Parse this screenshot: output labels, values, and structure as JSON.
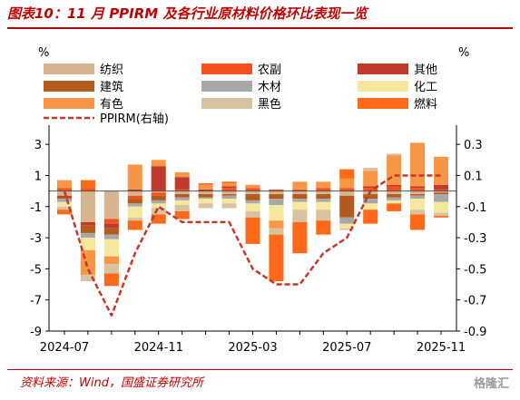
{
  "figure_title": "图表10：11 月 PPIRM 及各行业原材料价格环比表现一览",
  "source_note": "资料来源：Wind，国盛证券研究所",
  "watermark": "格隆汇",
  "colors": {
    "title_red": "#c00000",
    "纺织": "#d7b48f",
    "农副": "#f4511e",
    "其他": "#c0392b",
    "建筑": "#b35a1f",
    "木材": "#a8a8a8",
    "化工": "#f5e79e",
    "有色": "#f79646",
    "黑色": "#d9c2a0",
    "燃料": "#ff6a1a",
    "PPIRM": "#c0392b"
  },
  "chart_data": {
    "type": "bar",
    "stacked": true,
    "xlabel": "",
    "ylabel_left": "%",
    "ylabel_right": "%",
    "ylim": [
      -9,
      4
    ],
    "y2lim": [
      -0.9,
      0.4
    ],
    "yticks": [
      3,
      1,
      -1,
      -3,
      -5,
      -7,
      -9
    ],
    "y2ticks": [
      0.3,
      0.1,
      -0.1,
      -0.3,
      -0.5,
      -0.7,
      -0.9
    ],
    "grid": false,
    "legend": "top",
    "categories": [
      "2024-07",
      "2024-08",
      "2024-09",
      "2024-10",
      "2024-11",
      "2024-12",
      "2025-01",
      "2025-02",
      "2025-03",
      "2025-04",
      "2025-05",
      "2025-06",
      "2025-07",
      "2025-08",
      "2025-09",
      "2025-10",
      "2025-11"
    ],
    "xtick_labels": [
      "2024-07",
      "2024-11",
      "2025-03",
      "2025-07",
      "2025-11"
    ],
    "xtick_indices": [
      0,
      4,
      8,
      12,
      16
    ],
    "series": [
      {
        "name": "纺织",
        "axis": "left",
        "values": [
          -0.3,
          -2.0,
          -1.8,
          -0.3,
          -0.1,
          -0.2,
          -0.2,
          -0.2,
          -0.2,
          -0.2,
          -0.2,
          -0.2,
          -0.3,
          -0.2,
          -0.2,
          -0.2,
          -0.1
        ]
      },
      {
        "name": "农副",
        "axis": "left",
        "values": [
          0.2,
          0.2,
          -0.3,
          -0.2,
          -0.2,
          0.1,
          0.0,
          0.2,
          0.2,
          0.1,
          0.1,
          0.2,
          0.2,
          0.2,
          0.3,
          0.2,
          0.1
        ]
      },
      {
        "name": "其他",
        "axis": "left",
        "values": [
          -0.1,
          -0.2,
          -0.3,
          0.1,
          1.6,
          0.8,
          0.1,
          0.1,
          0.0,
          0.0,
          0.0,
          0.0,
          0.0,
          0.1,
          0.1,
          0.1,
          0.3
        ]
      },
      {
        "name": "建筑",
        "axis": "left",
        "values": [
          -0.1,
          -0.5,
          -0.4,
          -0.3,
          -0.3,
          -0.2,
          -0.2,
          -0.1,
          -0.4,
          -0.3,
          -0.3,
          -0.3,
          -1.4,
          -0.3,
          -0.2,
          -0.1,
          -0.1
        ]
      },
      {
        "name": "木材",
        "axis": "left",
        "values": [
          -0.2,
          -0.3,
          -0.3,
          -0.2,
          -0.2,
          -0.2,
          -0.1,
          -0.2,
          -0.2,
          -0.4,
          -0.2,
          -0.2,
          -0.4,
          -0.3,
          -0.2,
          -0.2,
          -0.5
        ]
      },
      {
        "name": "化工",
        "axis": "left",
        "values": [
          -0.3,
          -0.8,
          -1.1,
          -0.7,
          -0.3,
          -0.3,
          -0.3,
          -0.3,
          -0.5,
          -1.0,
          -0.5,
          -0.5,
          -0.3,
          -0.4,
          -0.2,
          -0.7,
          -0.7
        ]
      },
      {
        "name": "有色",
        "axis": "left",
        "values": [
          0.5,
          -1.6,
          -0.5,
          1.6,
          0.4,
          0.3,
          0.3,
          0.2,
          0.2,
          -0.5,
          0.5,
          0.4,
          0.6,
          1.0,
          1.9,
          2.8,
          1.8
        ]
      },
      {
        "name": "黑色",
        "axis": "left",
        "values": [
          -0.2,
          -0.4,
          -0.6,
          -0.2,
          -0.4,
          -0.4,
          -0.3,
          -0.3,
          -0.4,
          -0.4,
          -0.8,
          -0.7,
          -0.1,
          0.2,
          0.1,
          -0.3,
          -0.2
        ]
      },
      {
        "name": "燃料",
        "axis": "left",
        "values": [
          -0.3,
          0.5,
          -0.8,
          -0.6,
          -0.6,
          -0.5,
          0.1,
          0.1,
          -1.7,
          -3.0,
          -2.0,
          -0.9,
          0.6,
          -0.9,
          -0.5,
          -1.0,
          -0.1
        ]
      },
      {
        "name": "PPIRM(右轴)",
        "axis": "right",
        "type": "line",
        "values": [
          0.0,
          -0.5,
          -0.8,
          -0.4,
          -0.1,
          -0.2,
          -0.2,
          -0.2,
          -0.5,
          -0.6,
          -0.6,
          -0.4,
          -0.3,
          0.0,
          0.1,
          0.1,
          0.1
        ]
      }
    ]
  },
  "legend_items": [
    {
      "label": "纺织",
      "key": "纺织"
    },
    {
      "label": "农副",
      "key": "农副"
    },
    {
      "label": "其他",
      "key": "其他"
    },
    {
      "label": "建筑",
      "key": "建筑"
    },
    {
      "label": "木材",
      "key": "木材"
    },
    {
      "label": "化工",
      "key": "化工"
    },
    {
      "label": "有色",
      "key": "有色"
    },
    {
      "label": "黑色",
      "key": "黑色"
    },
    {
      "label": "燃料",
      "key": "燃料"
    },
    {
      "label": "PPIRM(右轴)",
      "key": "PPIRM",
      "line": true
    }
  ]
}
